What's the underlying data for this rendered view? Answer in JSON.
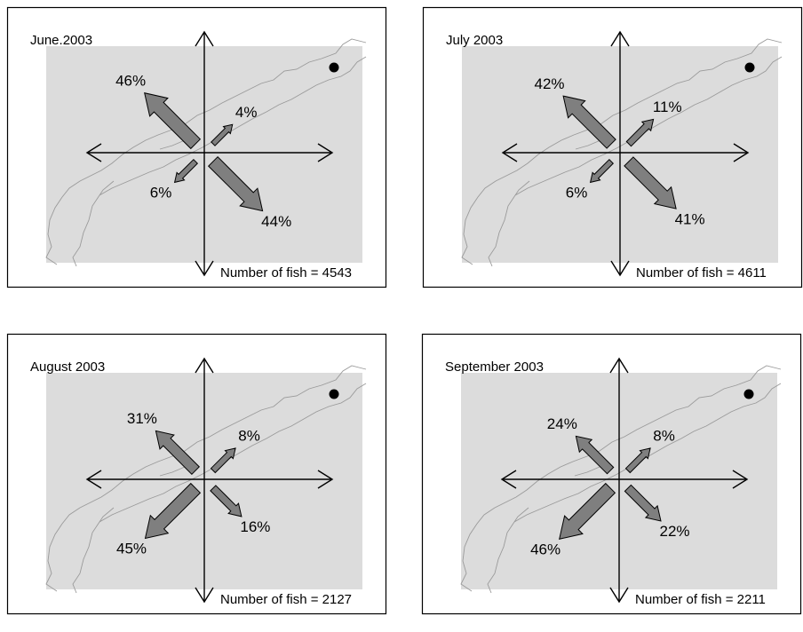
{
  "panels": [
    {
      "title": "June.2003",
      "nw": "46%",
      "ne": "4%",
      "sw": "6%",
      "se": "44%",
      "count": "Number of fish = 4543"
    },
    {
      "title": "July 2003",
      "nw": "42%",
      "ne": "11%",
      "sw": "6%",
      "se": "41%",
      "count": "Number of fish = 4611"
    },
    {
      "title": "August 2003",
      "nw": "31%",
      "ne": "8%",
      "sw": "45%",
      "se": "16%",
      "count": "Number of fish = 2127"
    },
    {
      "title": "September 2003",
      "nw": "24%",
      "ne": "8%",
      "sw": "46%",
      "se": "22%",
      "count": "Number of fish = 2211"
    }
  ]
}
